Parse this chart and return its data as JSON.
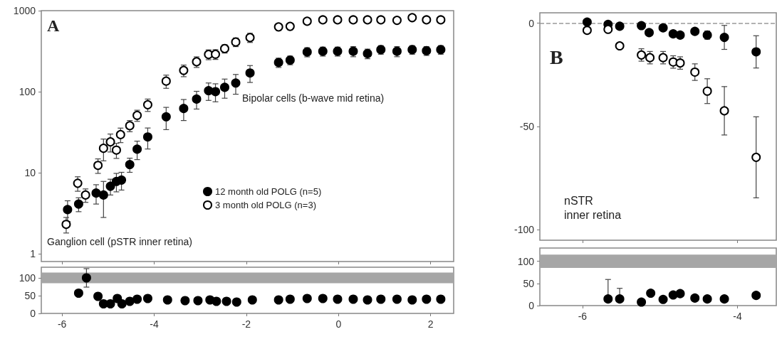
{
  "chart_data": [
    {
      "type": "scatter",
      "log": "y",
      "xlim": [
        -6.45,
        2.5
      ],
      "xticks": [
        -6,
        -4,
        -2,
        0,
        2
      ],
      "ylim": [
        0.8,
        1000
      ],
      "yticks": [
        1,
        10,
        100,
        1000
      ],
      "tick_labels": "y",
      "marker": "circle",
      "legend": "bottom right",
      "annotations": [
        "A",
        "Bipolar cells (b-wave mid retina)",
        "Ganglion cell (pSTR inner retina)"
      ],
      "series": [
        {
          "name": "12 month old POLG (n=5)",
          "color": "#000000",
          "x": [
            -5.88,
            -5.64,
            -5.26,
            -5.1,
            -4.95,
            -4.82,
            -4.71,
            -4.53,
            -4.37,
            -4.14,
            -3.74,
            -3.36,
            -3.08,
            -2.82,
            -2.67,
            -2.47,
            -2.23,
            -1.92,
            -1.3,
            -1.05,
            -0.68,
            -0.34,
            -0.02,
            0.32,
            0.63,
            0.92,
            1.27,
            1.6,
            1.91,
            2.22
          ],
          "values": [
            3.5,
            4.1,
            5.6,
            5.3,
            6.8,
            7.8,
            8.1,
            12.6,
            19.5,
            27.6,
            49,
            62,
            81,
            103,
            100,
            113,
            128,
            170,
            229,
            245,
            309,
            315,
            315,
            315,
            295,
            330,
            315,
            330,
            320,
            330
          ],
          "errors": [
            1,
            0.8,
            1.5,
            2.5,
            1.5,
            2,
            2,
            2.5,
            5,
            8,
            15,
            18,
            20,
            25,
            25,
            30,
            35,
            40,
            30,
            30,
            40,
            40,
            40,
            45,
            40,
            40,
            45,
            40,
            40,
            40
          ]
        },
        {
          "name": "3 month old POLG (n=3)",
          "color": "#ffffff",
          "x": [
            -5.91,
            -5.66,
            -5.49,
            -5.22,
            -5.1,
            -4.95,
            -4.82,
            -4.73,
            -4.53,
            -4.37,
            -4.14,
            -3.74,
            -3.36,
            -3.08,
            -2.82,
            -2.67,
            -2.47,
            -2.23,
            -1.92,
            -1.3,
            -1.05,
            -0.68,
            -0.34,
            -0.02,
            0.32,
            0.63,
            0.92,
            1.27,
            1.6,
            1.91,
            2.22
          ],
          "values": [
            2.3,
            7.4,
            5.3,
            12.3,
            20,
            24,
            19,
            29.5,
            38,
            51,
            69,
            135,
            183,
            234,
            288,
            290,
            340,
            410,
            465,
            630,
            640,
            740,
            770,
            770,
            770,
            770,
            770,
            760,
            820,
            770,
            770
          ],
          "errors": [
            0.5,
            1.5,
            1,
            2.5,
            6,
            6,
            4,
            6,
            6,
            8,
            12,
            25,
            30,
            35,
            40,
            40,
            40,
            50,
            60,
            60,
            60,
            50,
            50,
            50,
            50,
            50,
            50,
            50,
            50,
            50,
            50
          ]
        }
      ]
    },
    {
      "type": "scatter",
      "xlim": [
        -6.45,
        2.5
      ],
      "xticks": [
        -6,
        -4,
        -2,
        0,
        2
      ],
      "ylim": [
        0,
        130
      ],
      "yticks": [
        0,
        50,
        100
      ],
      "marker": "circle",
      "bands": [
        {
          "axis": "y",
          "from": 85,
          "to": 115,
          "color": "#a6a6a6"
        }
      ],
      "x": [
        -5.64,
        -5.47,
        -5.22,
        -5.1,
        -4.95,
        -4.8,
        -4.7,
        -4.53,
        -4.37,
        -4.14,
        -3.71,
        -3.33,
        -3.05,
        -2.79,
        -2.65,
        -2.43,
        -2.21,
        -1.87,
        -1.3,
        -1.05,
        -0.68,
        -0.34,
        -0.02,
        0.32,
        0.63,
        0.92,
        1.27,
        1.6,
        1.91,
        2.22
      ],
      "series": [
        {
          "color": "#000000",
          "values": [
            57,
            100,
            48,
            27,
            27,
            42,
            27,
            34,
            40,
            42,
            38,
            36,
            36,
            38,
            34,
            34,
            32,
            38,
            38,
            40,
            42,
            42,
            40,
            40,
            38,
            40,
            40,
            38,
            40,
            40
          ],
          "errors": [
            null,
            26,
            null,
            null,
            null,
            null,
            null,
            null,
            null,
            null,
            null,
            null,
            null,
            null,
            null,
            null,
            null,
            null,
            null,
            null,
            null,
            null,
            null,
            null,
            null,
            null,
            null,
            null,
            null,
            null
          ]
        }
      ]
    },
    {
      "type": "scatter",
      "xlim": [
        -6.55,
        -3.5
      ],
      "xticks": [
        -6,
        -4
      ],
      "ylim": [
        -105,
        5
      ],
      "yticks": [
        -100,
        -50,
        0
      ],
      "tick_labels": "y",
      "marker": "circle",
      "ref_lines": [
        {
          "axis": "y",
          "value": 0,
          "line_style": "dashed",
          "color": "#999999"
        }
      ],
      "annotations": [
        "B",
        "nSTR\ninner retina"
      ],
      "series": [
        {
          "color": "#000000",
          "x": [
            -5.94,
            -5.67,
            -5.52,
            -5.24,
            -5.14,
            -4.96,
            -4.83,
            -4.74,
            -4.55,
            -4.39,
            -4.17,
            -3.76
          ],
          "values": [
            0.5,
            -0.6,
            -1.5,
            -1.2,
            -4.6,
            -2.3,
            -5.2,
            -5.8,
            -4,
            -5.8,
            -6.9,
            -13.9
          ],
          "errors": [
            null,
            null,
            null,
            null,
            null,
            null,
            null,
            null,
            null,
            2,
            5.8,
            7.8
          ]
        },
        {
          "color": "#ffffff",
          "x": [
            -5.94,
            -5.67,
            -5.52,
            -5.24,
            -5.13,
            -4.96,
            -4.83,
            -4.74,
            -4.55,
            -4.39,
            -4.17,
            -3.76
          ],
          "values": [
            -3.5,
            -3,
            -11,
            -15.4,
            -16.7,
            -16.7,
            -18.8,
            -19.3,
            -23.7,
            -32.9,
            -42.4,
            -64.9
          ],
          "errors": [
            null,
            null,
            null,
            3,
            3,
            3,
            3,
            3,
            4,
            6,
            11.7,
            19.6
          ]
        }
      ]
    },
    {
      "type": "scatter",
      "xlim": [
        -6.55,
        -3.5
      ],
      "xticks": [
        -6,
        -4
      ],
      "ylim": [
        0,
        130
      ],
      "yticks": [
        0,
        50,
        100
      ],
      "marker": "circle",
      "bands": [
        {
          "axis": "y",
          "from": 85,
          "to": 115,
          "color": "#a6a6a6"
        }
      ],
      "x": [
        -5.67,
        -5.52,
        -5.24,
        -5.12,
        -4.96,
        -4.83,
        -4.74,
        -4.55,
        -4.39,
        -4.17,
        -3.76
      ],
      "series": [
        {
          "color": "#000000",
          "values": [
            15,
            15,
            8,
            28,
            14,
            24,
            27,
            17,
            15,
            15,
            23
          ],
          "errors": [
            [
              15,
              59
            ],
            [
              15,
              39
            ],
            null,
            null,
            null,
            null,
            null,
            null,
            null,
            null,
            null
          ]
        }
      ]
    }
  ]
}
